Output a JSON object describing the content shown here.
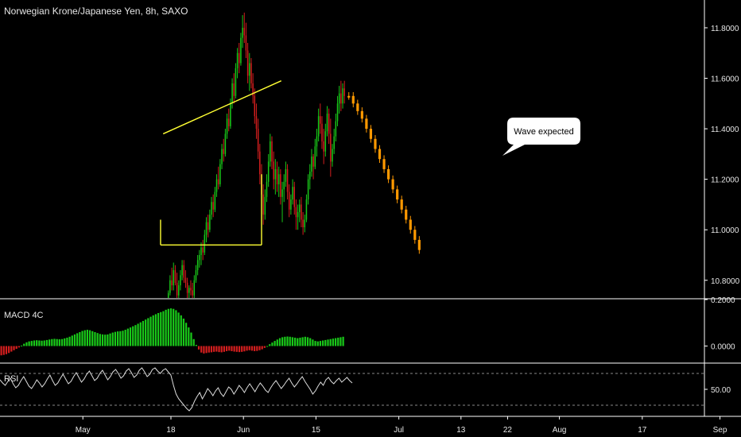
{
  "header": {
    "title": "Norwegian Krone/Japanese Yen, 8h, SAXO"
  },
  "panes": {
    "macd_label": "MACD 4C",
    "rsi_label": "RSI"
  },
  "annotation": {
    "callout_text": "Wave expected"
  },
  "colors": {
    "background": "#000000",
    "up": "#19c819",
    "down": "#d21e1e",
    "projection": "#ff9900",
    "trendline": "#ffff33",
    "axis_line": "#ffffff",
    "rsi_line": "#dddddd",
    "guide": "#888888"
  },
  "chart_data": [
    {
      "type": "candlestick",
      "pane": "price",
      "xlabel": "",
      "ylabel": "",
      "x_ticks": [
        "May",
        "18",
        "Jun",
        "15",
        "Jul",
        "13",
        "22",
        "Aug",
        "17",
        "Sep"
      ],
      "y_ticks": [
        "11.8000",
        "11.6000",
        "11.4000",
        "11.2000",
        "11.0000",
        "10.8000"
      ],
      "y_tick_values": [
        11.8,
        11.6,
        11.4,
        11.2,
        11.0,
        10.8
      ],
      "ylim": [
        10.73,
        11.91
      ],
      "x_unit": "days from first labeled tick (May 1)",
      "xlim": [
        -16,
        120
      ],
      "x_tick_positions": [
        0,
        17,
        31,
        45,
        61,
        73,
        82,
        92,
        108,
        123
      ],
      "bars_start": 16.5,
      "bars_step": 0.3333,
      "ohlc": [
        [
          10.73,
          10.76,
          10.72,
          10.75
        ],
        [
          10.75,
          10.82,
          10.74,
          10.8
        ],
        [
          10.8,
          10.85,
          10.76,
          10.78
        ],
        [
          10.78,
          10.87,
          10.76,
          10.84
        ],
        [
          10.84,
          10.86,
          10.78,
          10.79
        ],
        [
          10.79,
          10.83,
          10.72,
          10.74
        ],
        [
          10.74,
          10.8,
          10.73,
          10.78
        ],
        [
          10.78,
          10.84,
          10.76,
          10.82
        ],
        [
          10.82,
          10.88,
          10.8,
          10.86
        ],
        [
          10.86,
          10.88,
          10.79,
          10.81
        ],
        [
          10.81,
          10.84,
          10.77,
          10.79
        ],
        [
          10.79,
          10.81,
          10.73,
          10.75
        ],
        [
          10.75,
          10.78,
          10.72,
          10.77
        ],
        [
          10.77,
          10.8,
          10.74,
          10.76
        ],
        [
          10.76,
          10.79,
          10.72,
          10.74
        ],
        [
          10.74,
          10.82,
          10.73,
          10.8
        ],
        [
          10.8,
          10.86,
          10.79,
          10.84
        ],
        [
          10.84,
          10.9,
          10.82,
          10.88
        ],
        [
          10.88,
          10.92,
          10.85,
          10.9
        ],
        [
          10.9,
          10.95,
          10.86,
          10.93
        ],
        [
          10.93,
          10.96,
          10.88,
          10.91
        ],
        [
          10.91,
          11.0,
          10.9,
          10.98
        ],
        [
          10.98,
          11.05,
          10.95,
          11.03
        ],
        [
          11.03,
          11.06,
          10.97,
          11.0
        ],
        [
          11.0,
          11.08,
          10.99,
          11.06
        ],
        [
          11.06,
          11.13,
          11.04,
          11.11
        ],
        [
          11.11,
          11.14,
          11.05,
          11.08
        ],
        [
          11.08,
          11.17,
          11.07,
          11.15
        ],
        [
          11.15,
          11.22,
          11.13,
          11.2
        ],
        [
          11.2,
          11.25,
          11.16,
          11.18
        ],
        [
          11.18,
          11.28,
          11.17,
          11.26
        ],
        [
          11.26,
          11.34,
          11.24,
          11.32
        ],
        [
          11.32,
          11.36,
          11.27,
          11.3
        ],
        [
          11.3,
          11.4,
          11.29,
          11.38
        ],
        [
          11.38,
          11.46,
          11.36,
          11.44
        ],
        [
          11.44,
          11.48,
          11.39,
          11.41
        ],
        [
          11.41,
          11.52,
          11.4,
          11.5
        ],
        [
          11.5,
          11.6,
          11.48,
          11.58
        ],
        [
          11.58,
          11.62,
          11.5,
          11.53
        ],
        [
          11.53,
          11.66,
          11.52,
          11.64
        ],
        [
          11.64,
          11.72,
          11.6,
          11.7
        ],
        [
          11.7,
          11.74,
          11.62,
          11.66
        ],
        [
          11.66,
          11.78,
          11.65,
          11.76
        ],
        [
          11.76,
          11.85,
          11.72,
          11.8
        ],
        [
          11.8,
          11.86,
          11.74,
          11.77
        ],
        [
          11.77,
          11.82,
          11.68,
          11.71
        ],
        [
          11.71,
          11.74,
          11.58,
          11.61
        ],
        [
          11.61,
          11.7,
          11.55,
          11.66
        ],
        [
          11.66,
          11.68,
          11.56,
          11.58
        ],
        [
          11.58,
          11.62,
          11.5,
          11.53
        ],
        [
          11.53,
          11.56,
          11.42,
          11.45
        ],
        [
          11.45,
          11.5,
          11.36,
          11.4
        ],
        [
          11.4,
          11.44,
          11.28,
          11.31
        ],
        [
          11.31,
          11.34,
          11.18,
          11.22
        ],
        [
          11.22,
          11.26,
          11.1,
          11.14
        ],
        [
          11.14,
          11.18,
          11.02,
          11.06
        ],
        [
          11.06,
          11.16,
          11.04,
          11.13
        ],
        [
          11.13,
          11.22,
          11.11,
          11.19
        ],
        [
          11.19,
          11.3,
          11.17,
          11.27
        ],
        [
          11.27,
          11.38,
          11.25,
          11.35
        ],
        [
          11.35,
          11.37,
          11.24,
          11.27
        ],
        [
          11.27,
          11.31,
          11.16,
          11.2
        ],
        [
          11.2,
          11.28,
          11.14,
          11.24
        ],
        [
          11.24,
          11.27,
          11.15,
          11.18
        ],
        [
          11.18,
          11.25,
          11.13,
          11.22
        ],
        [
          11.22,
          11.24,
          11.1,
          11.13
        ],
        [
          11.13,
          11.19,
          11.03,
          11.16
        ],
        [
          11.16,
          11.22,
          11.11,
          11.19
        ],
        [
          11.19,
          11.27,
          11.17,
          11.24
        ],
        [
          11.24,
          11.26,
          11.12,
          11.15
        ],
        [
          11.15,
          11.18,
          11.05,
          11.08
        ],
        [
          11.08,
          11.14,
          11.06,
          11.12
        ],
        [
          11.12,
          11.2,
          11.1,
          11.17
        ],
        [
          11.17,
          11.19,
          11.06,
          11.09
        ],
        [
          11.09,
          11.12,
          11.0,
          11.05
        ],
        [
          11.05,
          11.1,
          11.0,
          11.07
        ],
        [
          11.07,
          11.12,
          11.03,
          11.1
        ],
        [
          11.1,
          11.13,
          11.01,
          11.04
        ],
        [
          11.04,
          11.07,
          10.98,
          11.01
        ],
        [
          11.01,
          11.06,
          10.99,
          11.04
        ],
        [
          11.04,
          11.14,
          11.03,
          11.12
        ],
        [
          11.12,
          11.22,
          11.1,
          11.2
        ],
        [
          11.2,
          11.26,
          11.16,
          11.23
        ],
        [
          11.23,
          11.32,
          11.21,
          11.29
        ],
        [
          11.29,
          11.3,
          11.2,
          11.25
        ],
        [
          11.25,
          11.36,
          11.24,
          11.33
        ],
        [
          11.33,
          11.4,
          11.29,
          11.37
        ],
        [
          11.37,
          11.48,
          11.35,
          11.45
        ],
        [
          11.45,
          11.5,
          11.38,
          11.42
        ],
        [
          11.42,
          11.45,
          11.32,
          11.35
        ],
        [
          11.35,
          11.4,
          11.26,
          11.31
        ],
        [
          11.31,
          11.42,
          11.29,
          11.39
        ],
        [
          11.39,
          11.49,
          11.37,
          11.46
        ],
        [
          11.46,
          11.48,
          11.34,
          11.38
        ],
        [
          11.38,
          11.44,
          11.21,
          11.27
        ],
        [
          11.27,
          11.34,
          11.25,
          11.32
        ],
        [
          11.32,
          11.4,
          11.3,
          11.37
        ],
        [
          11.37,
          11.46,
          11.35,
          11.43
        ],
        [
          11.43,
          11.53,
          11.41,
          11.5
        ],
        [
          11.5,
          11.57,
          11.46,
          11.54
        ],
        [
          11.54,
          11.59,
          11.47,
          11.5
        ],
        [
          11.5,
          11.58,
          11.48,
          11.56
        ],
        [
          11.56,
          11.59,
          11.5,
          11.53
        ]
      ],
      "projection": [
        11.53,
        11.5,
        11.47,
        11.44,
        11.4,
        11.36,
        11.32,
        11.28,
        11.24,
        11.2,
        11.16,
        11.12,
        11.08,
        11.04,
        11.0,
        10.96,
        10.92
      ],
      "projection_step": 0.85,
      "trendlines": [
        {
          "from": [
            15.5,
            11.38
          ],
          "to": [
            38.3,
            11.59
          ]
        },
        {
          "from": [
            15.0,
            10.94
          ],
          "to": [
            34.5,
            10.94
          ]
        },
        {
          "from": [
            15.0,
            10.94
          ],
          "to": [
            15.0,
            11.04
          ]
        },
        {
          "from": [
            34.5,
            10.94
          ],
          "to": [
            34.5,
            11.22
          ]
        }
      ]
    },
    {
      "type": "bar",
      "pane": "macd",
      "name": "MACD 4C",
      "y_ticks": [
        "0.2000",
        "0.0000"
      ],
      "y_tick_values": [
        0.2,
        0.0
      ],
      "ylim": [
        -0.07,
        0.2
      ],
      "values": [
        -0.04,
        -0.038,
        -0.035,
        -0.03,
        -0.024,
        -0.018,
        -0.012,
        -0.006,
        0.002,
        0.01,
        0.016,
        0.02,
        0.022,
        0.024,
        0.025,
        0.024,
        0.023,
        0.024,
        0.026,
        0.028,
        0.03,
        0.031,
        0.03,
        0.029,
        0.03,
        0.033,
        0.036,
        0.04,
        0.045,
        0.05,
        0.055,
        0.06,
        0.065,
        0.068,
        0.07,
        0.068,
        0.064,
        0.06,
        0.056,
        0.052,
        0.05,
        0.049,
        0.05,
        0.054,
        0.058,
        0.061,
        0.063,
        0.064,
        0.066,
        0.07,
        0.075,
        0.08,
        0.085,
        0.09,
        0.096,
        0.102,
        0.108,
        0.114,
        0.12,
        0.126,
        0.132,
        0.137,
        0.142,
        0.146,
        0.15,
        0.156,
        0.16,
        0.162,
        0.16,
        0.154,
        0.144,
        0.132,
        0.118,
        0.1,
        0.08,
        0.058,
        0.03,
        0.005,
        -0.015,
        -0.028,
        -0.032,
        -0.03,
        -0.028,
        -0.027,
        -0.025,
        -0.024,
        -0.026,
        -0.027,
        -0.025,
        -0.022,
        -0.02,
        -0.022,
        -0.024,
        -0.025,
        -0.026,
        -0.025,
        -0.023,
        -0.02,
        -0.018,
        -0.02,
        -0.022,
        -0.021,
        -0.018,
        -0.014,
        -0.008,
        0.0,
        0.008,
        0.015,
        0.022,
        0.028,
        0.034,
        0.038,
        0.04,
        0.041,
        0.04,
        0.038,
        0.036,
        0.034,
        0.036,
        0.038,
        0.04,
        0.038,
        0.034,
        0.028,
        0.022,
        0.02,
        0.022,
        0.024,
        0.026,
        0.028,
        0.03,
        0.032,
        0.034,
        0.036,
        0.038,
        0.04
      ]
    },
    {
      "type": "line",
      "pane": "rsi",
      "name": "RSI",
      "y_ticks": [
        "50.00"
      ],
      "y_tick_values": [
        50
      ],
      "ylim": [
        18,
        82
      ],
      "bands": [
        70,
        30
      ],
      "values": [
        62,
        58,
        55,
        60,
        64,
        57,
        52,
        55,
        61,
        66,
        60,
        54,
        51,
        56,
        62,
        58,
        53,
        57,
        63,
        68,
        61,
        55,
        58,
        64,
        69,
        63,
        57,
        60,
        66,
        71,
        65,
        59,
        63,
        69,
        73,
        67,
        61,
        64,
        70,
        74,
        68,
        62,
        66,
        72,
        75,
        70,
        64,
        67,
        73,
        76,
        71,
        65,
        68,
        74,
        77,
        72,
        66,
        69,
        75,
        77,
        73,
        70,
        74,
        76,
        72,
        68,
        55,
        44,
        38,
        34,
        30,
        26,
        23,
        27,
        35,
        41,
        46,
        38,
        44,
        51,
        47,
        42,
        48,
        52,
        45,
        41,
        47,
        53,
        50,
        44,
        49,
        55,
        51,
        46,
        52,
        57,
        52,
        47,
        53,
        58,
        54,
        49,
        46,
        52,
        57,
        61,
        56,
        51,
        55,
        60,
        64,
        58,
        53,
        57,
        62,
        66,
        60,
        55,
        50,
        44,
        48,
        54,
        59,
        55,
        62,
        65,
        60,
        57,
        61,
        64,
        59,
        62,
        65,
        61,
        58
      ]
    }
  ]
}
